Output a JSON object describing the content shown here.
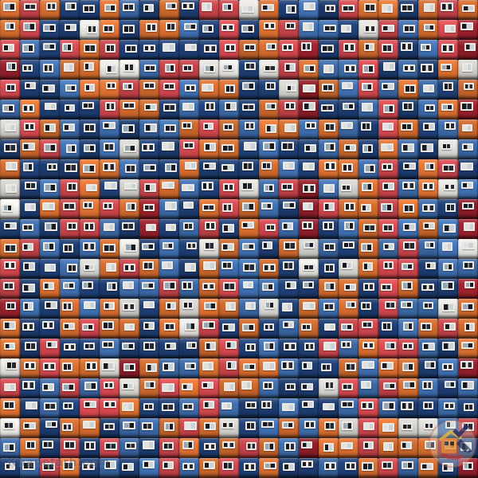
{
  "scene": {
    "alt": "Colorful apartment building facade made of repeating orange, red, crimson, navy, blue and white balcony panels, each panel with a small white-framed window",
    "grid": {
      "cols": 24,
      "rows": 24,
      "cell_size": 25,
      "rows_colors": [
        "OROBBOMBOBRRWOBMBROOBORO",
        "ORBBWOBOOMBRBORMMBWRMORC",
        "RMBRORBBBBBROORCBRORBMRC",
        "CBMOOWWMRRWWBWROMMRBMBOW",
        "RBBMOORORMOOBBWCOMRMOMBO",
        "MOBBBROOBMBMBORCBBMRBMOC",
        "WROMBMBMMOROMOOMOMBROBMO",
        "BORMBMWBBROOBMBBMOBOMBWM",
        "OBBBOOMBBOBBBOMBOOMRBORB",
        "WBMROBWROMBRWMRCMWORMOWM",
        "WBOROROCMBOROMBCROOROMBC",
        "BMBRRMBCBMRBORMCBMORMOMC",
        "ORMBMOWBMBWOMBOWMBOMRMMW",
        "RBBMWOROMBOMMOBWBWORRBMM",
        "RBOMBBMMRMORMMBBOOBROBBC",
        "CMBOMOWBOWOOMWBOMOBRMMWO",
        "OBBOROOBOWRBOBMOBRRBMORO",
        "OBRBBMBBBBORBMBBRMORRMBO",
        "WOROOWCOMMOROOMBBOMOOBMC",
        "RBMRMRWOROROOMBBWRMROMBM",
        "OBMBRROBBMRMBBMBBMRMBBMB",
        "WOBOOBMMOROWBMOMOWROWWMR",
        "MOBRBRMBROBOROMCOOROOOCB",
        "BMROBMBMRMORBOBBMBORMOBC"
      ]
    },
    "palette": {
      "panels": {
        "O": "#e1712f",
        "R": "#d8484f",
        "C": "#9d202c",
        "B": "#1e4078",
        "M": "#3f71b4",
        "W": "#e9e7e2"
      },
      "gap": "#0e1219",
      "window_frame": "#edeae5",
      "glass_dark": "#161a20",
      "glass_dark2": "#232a33",
      "glass_mid": "#93a7b4",
      "glass_light": "#dfe2e0",
      "glass_light2": "#c9d2d5"
    }
  },
  "watermark": {
    "text": "Khanetarh.com",
    "logo": {
      "circle_fill": "#f4f0eb",
      "circle_stroke": "#c05a32",
      "house_body": "#e8933a",
      "house_roof": "#f0c23c",
      "check": "#22306b",
      "pencil": "#2c3a5e",
      "swoosh": "#c23a42"
    }
  }
}
